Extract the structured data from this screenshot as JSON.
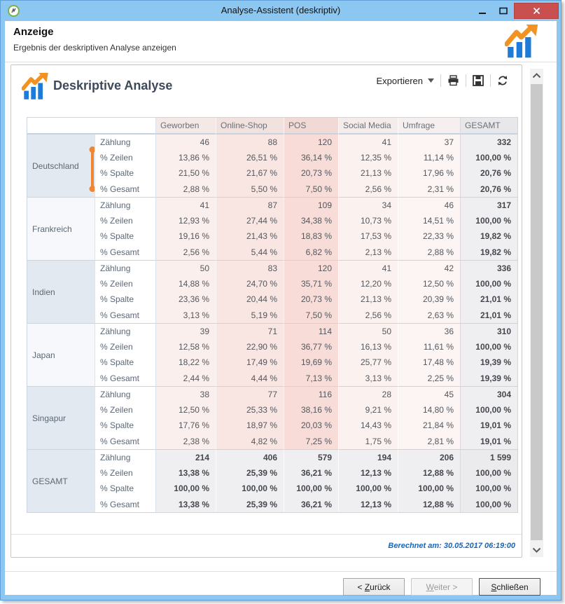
{
  "window": {
    "title": "Analyse-Assistent (deskriptiv)"
  },
  "page_header": {
    "title": "Anzeige",
    "subtitle": "Ergebnis der deskriptiven Analyse anzeigen"
  },
  "panel": {
    "title": "Deskriptive Analyse",
    "calculated_at": "Berechnet am: 30.05.2017 06:19:00"
  },
  "toolbar": {
    "export_label": "Exportieren",
    "icons": [
      "dropdown-caret-icon",
      "printer-icon",
      "floppy-save-icon",
      "refresh-icon"
    ]
  },
  "colors": {
    "titlebar_blue": "#8CC7F2",
    "close_red": "#C9504E",
    "accent_orange": "#EE8633",
    "logo_blue": "#1E7BD7",
    "footer_blue": "#1466BE",
    "label_cell_dark": "#E3E9F1",
    "label_cell_light": "#F6F8FB",
    "total_cell": "#EFEFF1",
    "total_corner_cell": "#EBEBEE"
  },
  "table": {
    "columns": [
      "Geworben",
      "Online-Shop",
      "POS",
      "Social Media",
      "Umfrage",
      "GESAMT"
    ],
    "column_tints": [
      "#FBEFED",
      "#F9E6E3",
      "#F7DCD8",
      "#FBF1EF",
      "#FCF5F4",
      "#EFEFF1"
    ],
    "header_tints": [
      "#F4E9E7",
      "#F2E2DF",
      "#F1DAD6",
      "#F4ECEA",
      "#F5F0EF",
      "#E8E8EA"
    ],
    "metrics": [
      "Zählung",
      "% Zeilen",
      "% Spalte",
      "% Gesamt"
    ],
    "groups": [
      {
        "label": "Deutschland",
        "highlight": true,
        "total": false,
        "rows": [
          [
            "46",
            "88",
            "120",
            "41",
            "37",
            "332"
          ],
          [
            "13,86 %",
            "26,51 %",
            "36,14 %",
            "12,35 %",
            "11,14 %",
            "100,00 %"
          ],
          [
            "21,50 %",
            "21,67 %",
            "20,73 %",
            "21,13 %",
            "17,96 %",
            "20,76 %"
          ],
          [
            "2,88 %",
            "5,50 %",
            "7,50 %",
            "2,56 %",
            "2,31 %",
            "20,76 %"
          ]
        ]
      },
      {
        "label": "Frankreich",
        "highlight": false,
        "total": false,
        "rows": [
          [
            "41",
            "87",
            "109",
            "34",
            "46",
            "317"
          ],
          [
            "12,93 %",
            "27,44 %",
            "34,38 %",
            "10,73 %",
            "14,51 %",
            "100,00 %"
          ],
          [
            "19,16 %",
            "21,43 %",
            "18,83 %",
            "17,53 %",
            "22,33 %",
            "19,82 %"
          ],
          [
            "2,56 %",
            "5,44 %",
            "6,82 %",
            "2,13 %",
            "2,88 %",
            "19,82 %"
          ]
        ]
      },
      {
        "label": "Indien",
        "highlight": false,
        "total": false,
        "rows": [
          [
            "50",
            "83",
            "120",
            "41",
            "42",
            "336"
          ],
          [
            "14,88 %",
            "24,70 %",
            "35,71 %",
            "12,20 %",
            "12,50 %",
            "100,00 %"
          ],
          [
            "23,36 %",
            "20,44 %",
            "20,73 %",
            "21,13 %",
            "20,39 %",
            "21,01 %"
          ],
          [
            "3,13 %",
            "5,19 %",
            "7,50 %",
            "2,56 %",
            "2,63 %",
            "21,01 %"
          ]
        ]
      },
      {
        "label": "Japan",
        "highlight": false,
        "total": false,
        "rows": [
          [
            "39",
            "71",
            "114",
            "50",
            "36",
            "310"
          ],
          [
            "12,58 %",
            "22,90 %",
            "36,77 %",
            "16,13 %",
            "11,61 %",
            "100,00 %"
          ],
          [
            "18,22 %",
            "17,49 %",
            "19,69 %",
            "25,77 %",
            "17,48 %",
            "19,39 %"
          ],
          [
            "2,44 %",
            "4,44 %",
            "7,13 %",
            "3,13 %",
            "2,25 %",
            "19,39 %"
          ]
        ]
      },
      {
        "label": "Singapur",
        "highlight": false,
        "total": false,
        "rows": [
          [
            "38",
            "77",
            "116",
            "28",
            "45",
            "304"
          ],
          [
            "12,50 %",
            "25,33 %",
            "38,16 %",
            "9,21 %",
            "14,80 %",
            "100,00 %"
          ],
          [
            "17,76 %",
            "18,97 %",
            "20,03 %",
            "14,43 %",
            "21,84 %",
            "19,01 %"
          ],
          [
            "2,38 %",
            "4,82 %",
            "7,25 %",
            "1,75 %",
            "2,81 %",
            "19,01 %"
          ]
        ]
      },
      {
        "label": "GESAMT",
        "highlight": false,
        "total": true,
        "rows": [
          [
            "214",
            "406",
            "579",
            "194",
            "206",
            "1 599"
          ],
          [
            "13,38 %",
            "25,39 %",
            "36,21 %",
            "12,13 %",
            "12,88 %",
            "100,00 %"
          ],
          [
            "100,00 %",
            "100,00 %",
            "100,00 %",
            "100,00 %",
            "100,00 %",
            "100,00 %"
          ],
          [
            "13,38 %",
            "25,39 %",
            "36,21 %",
            "12,13 %",
            "12,88 %",
            "100,00 %"
          ]
        ]
      }
    ]
  },
  "buttons": {
    "back": {
      "prefix": "< ",
      "key": "Z",
      "suffix": "urück"
    },
    "next": {
      "prefix": "",
      "key": "W",
      "suffix": "eiter >"
    },
    "close": {
      "prefix": "",
      "key": "S",
      "suffix": "chließen"
    }
  }
}
